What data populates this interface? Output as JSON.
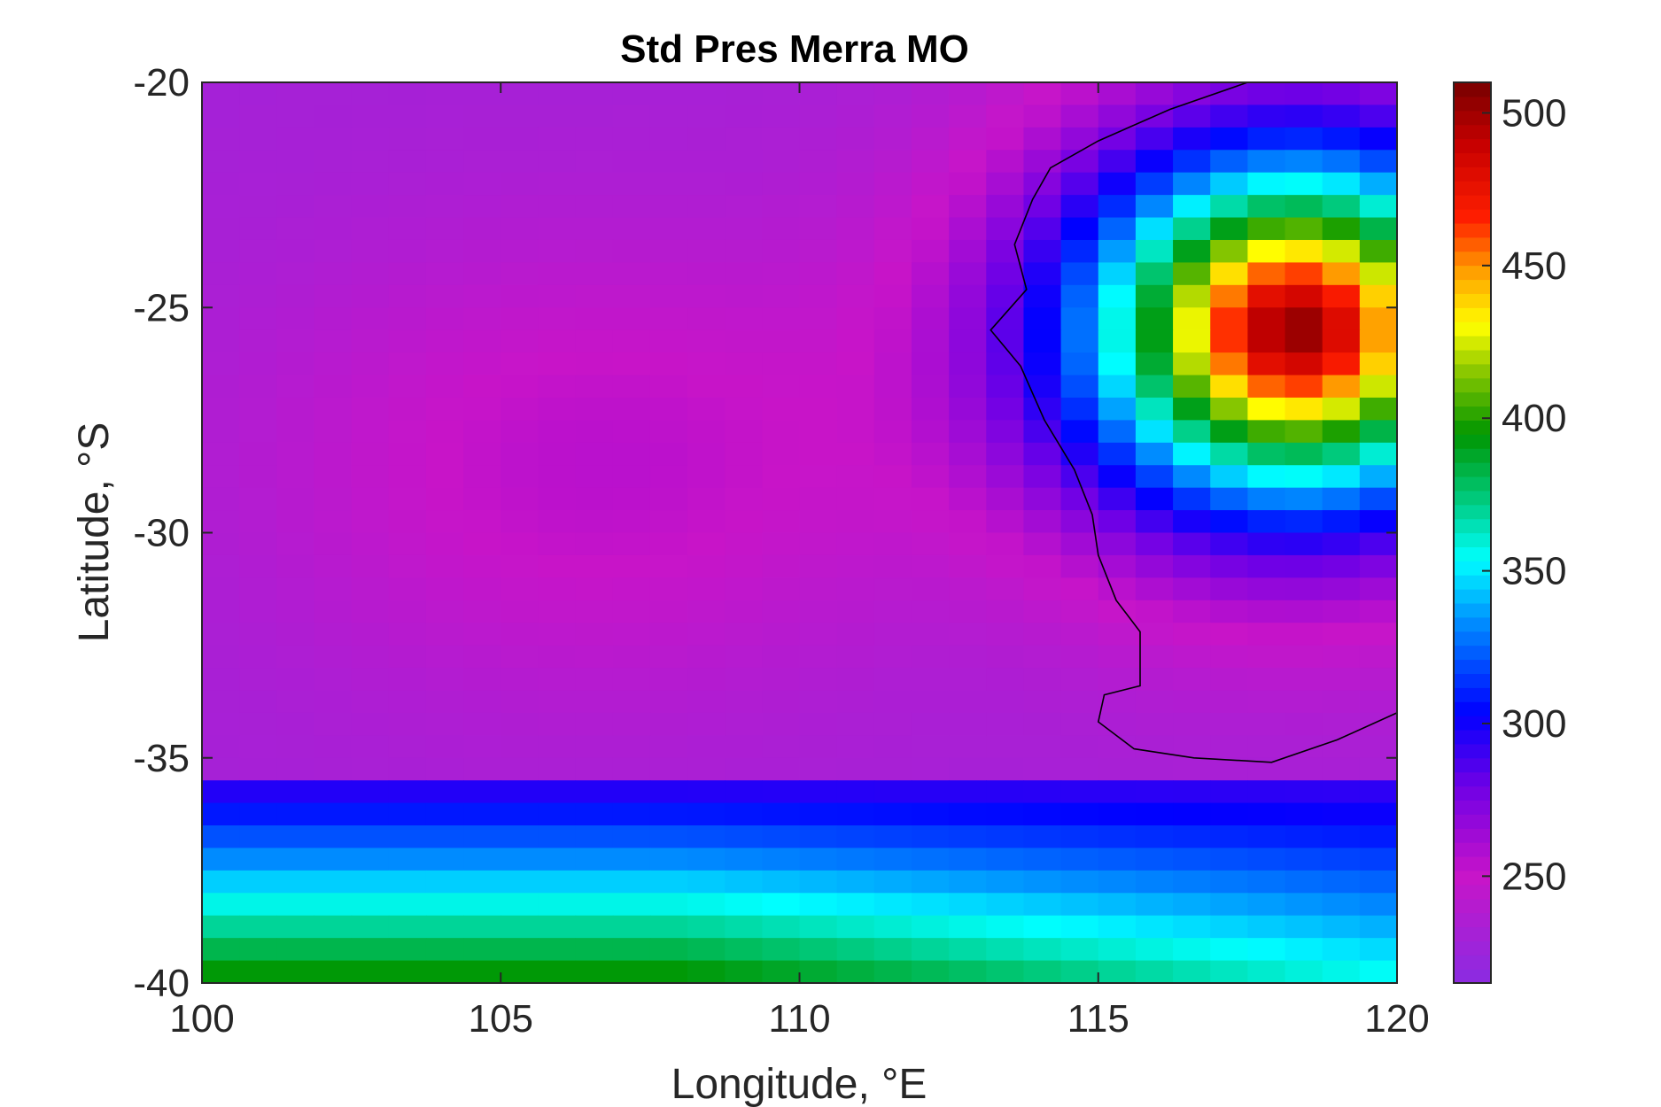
{
  "chart_data": {
    "type": "heatmap",
    "title": "Std Pres Merra MO",
    "xlabel": "Longitude, °E",
    "ylabel": "Latitude, °S",
    "xlim": [
      100,
      120
    ],
    "ylim": [
      -40,
      -20
    ],
    "xticks": [
      "100",
      "105",
      "110",
      "115",
      "120"
    ],
    "yticks": [
      "-20",
      "-25",
      "-30",
      "-35",
      "-40"
    ],
    "grid": {
      "cols": 32,
      "rows": 40
    },
    "colorbar": {
      "range": [
        215,
        510
      ],
      "ticks": [
        "500",
        "450",
        "400",
        "350",
        "300",
        "250"
      ],
      "tick_values": [
        500,
        450,
        400,
        350,
        300,
        250
      ],
      "colormap": "jet-like: violet-magenta-blue-cyan-green-yellow-orange-red-dark red"
    },
    "field_description_values": {
      "background_min": 230,
      "southeast_high": 505,
      "mid_plateau_magenta": 255,
      "southern_band_max": 400
    },
    "coastline_color": "#000000"
  }
}
